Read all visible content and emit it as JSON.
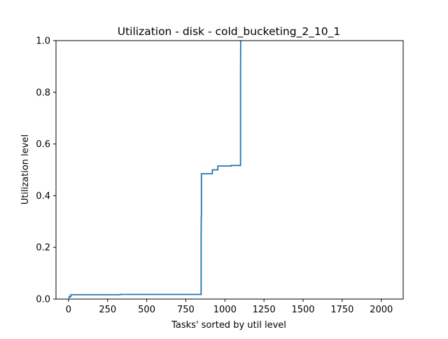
{
  "chart_data": {
    "type": "line",
    "title": "Utilization - disk - cold_bucketing_2_10_1",
    "xlabel": "Tasks' sorted by util level",
    "ylabel": "Utilization level",
    "xlim": [
      -80,
      2140
    ],
    "ylim": [
      0,
      1.0
    ],
    "xticks": [
      0,
      250,
      500,
      750,
      1000,
      1250,
      1500,
      1750,
      2000
    ],
    "xtick_labels": [
      "0",
      "250",
      "500",
      "750",
      "1000",
      "1250",
      "1500",
      "1750",
      "2000"
    ],
    "yticks": [
      0.0,
      0.2,
      0.4,
      0.6,
      0.8,
      1.0
    ],
    "ytick_labels": [
      "0.0",
      "0.2",
      "0.4",
      "0.6",
      "0.8",
      "1.0"
    ],
    "grid": false,
    "series": [
      {
        "color": "#1f77b4",
        "x": [
          0,
          5,
          5,
          15,
          15,
          330,
          330,
          848,
          848,
          849,
          850,
          850,
          920,
          920,
          955,
          955,
          1040,
          1040,
          1100,
          1100,
          1101
        ],
        "y": [
          0.005,
          0.005,
          0.01,
          0.01,
          0.017,
          0.017,
          0.018,
          0.018,
          0.24,
          0.32,
          0.32,
          0.485,
          0.485,
          0.5,
          0.5,
          0.515,
          0.515,
          0.517,
          0.517,
          0.88,
          1.0
        ]
      }
    ]
  }
}
